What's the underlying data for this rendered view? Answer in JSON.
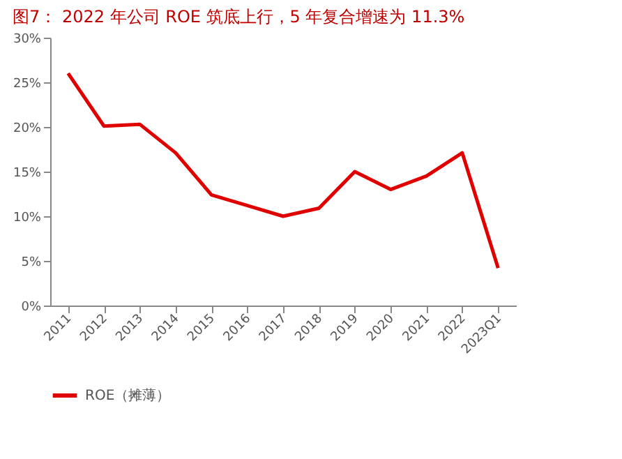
{
  "chart_data": {
    "type": "line",
    "title": "图7： 2022 年公司 ROE 筑底上行，5 年复合增速为 11.3%",
    "categories": [
      "2011",
      "2012",
      "2013",
      "2014",
      "2015",
      "2016",
      "2017",
      "2018",
      "2019",
      "2020",
      "2021",
      "2022",
      "2023Q1"
    ],
    "series": [
      {
        "name": "ROE（摊薄）",
        "color": "#e00000",
        "values": [
          26.0,
          20.1,
          20.3,
          17.1,
          12.4,
          11.2,
          10.0,
          10.9,
          15.0,
          13.0,
          14.5,
          17.1,
          4.2
        ]
      }
    ],
    "ylim": [
      0,
      30
    ],
    "yticks": [
      {
        "value": 0,
        "label": "0%"
      },
      {
        "value": 5,
        "label": "5%"
      },
      {
        "value": 10,
        "label": "10%"
      },
      {
        "value": 15,
        "label": "15%"
      },
      {
        "value": 20,
        "label": "20%"
      },
      {
        "value": 25,
        "label": "25%"
      },
      {
        "value": 30,
        "label": "30%"
      }
    ],
    "grid": false,
    "legend": "bottom",
    "marker": "none",
    "line_style": "solid"
  }
}
